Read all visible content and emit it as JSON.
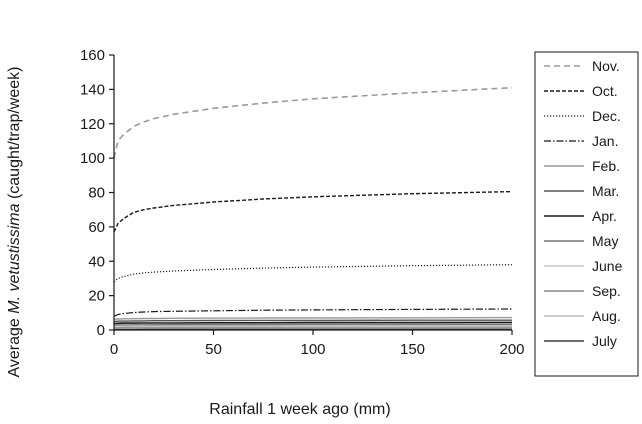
{
  "chart_data": {
    "type": "line",
    "xlabel": "Rainfall 1 week ago (mm)",
    "ylabel_prefix": "Average ",
    "ylabel_species": "M. vetustissima",
    "ylabel_suffix": " (caught/trap/week)",
    "xlim": [
      0,
      200
    ],
    "ylim": [
      0,
      160
    ],
    "x_ticks": [
      0,
      50,
      100,
      150,
      200
    ],
    "y_ticks": [
      0,
      20,
      40,
      60,
      80,
      100,
      120,
      140,
      160
    ],
    "grid": false,
    "legend_position": "right",
    "x": [
      0,
      2,
      5,
      10,
      15,
      20,
      30,
      50,
      75,
      100,
      150,
      200
    ],
    "series": [
      {
        "name": "Nov.",
        "color": "#9a9a9a",
        "dash": "6,4",
        "width": 1.6,
        "values": [
          100,
          110,
          114,
          118.5,
          121,
          123,
          125.5,
          129,
          132,
          134.5,
          138,
          141
        ]
      },
      {
        "name": "Oct.",
        "color": "#1a1a1a",
        "dash": "4,2",
        "width": 1.4,
        "values": [
          57,
          62,
          65,
          68.5,
          70,
          71,
          72.5,
          74.5,
          76.2,
          77.5,
          79.3,
          80.5
        ]
      },
      {
        "name": "Dec.",
        "color": "#1a1a1a",
        "dash": "1.2,1.8",
        "width": 1.2,
        "values": [
          28,
          30,
          31.2,
          32.5,
          33.2,
          33.7,
          34.3,
          35.2,
          36,
          36.6,
          37.4,
          38
        ]
      },
      {
        "name": "Jan.",
        "color": "#1a1a1a",
        "dash": "7,2,1.5,2",
        "width": 1.2,
        "values": [
          8,
          9,
          9.6,
          10.2,
          10.5,
          10.7,
          10.9,
          11.2,
          11.5,
          11.7,
          12,
          12.2
        ]
      },
      {
        "name": "Feb.",
        "color": "#9a9a9a",
        "dash": "",
        "width": 1.4,
        "values": [
          6.2,
          6.4,
          6.5,
          6.6,
          6.7,
          6.7,
          6.8,
          6.9,
          7,
          7,
          7.1,
          7.2
        ]
      },
      {
        "name": "Mar.",
        "color": "#555555",
        "dash": "",
        "width": 1.4,
        "values": [
          5,
          5.1,
          5.2,
          5.3,
          5.3,
          5.4,
          5.4,
          5.5,
          5.6,
          5.6,
          5.7,
          5.7
        ]
      },
      {
        "name": "Apr.",
        "color": "#1a1a1a",
        "dash": "",
        "width": 1.6,
        "values": [
          3.8,
          3.9,
          4,
          4,
          4.1,
          4.1,
          4.1,
          4.2,
          4.2,
          4.3,
          4.3,
          4.4
        ]
      },
      {
        "name": "May",
        "color": "#777777",
        "dash": "",
        "width": 1.4,
        "values": [
          2.8,
          2.9,
          2.9,
          3,
          3,
          3,
          3.1,
          3.1,
          3.1,
          3.2,
          3.2,
          3.2
        ]
      },
      {
        "name": "June",
        "color": "#c8c8c8",
        "dash": "",
        "width": 1.4,
        "values": [
          2,
          2,
          2.1,
          2.1,
          2.1,
          2.2,
          2.2,
          2.2,
          2.2,
          2.3,
          2.3,
          2.3
        ]
      },
      {
        "name": "Sep.",
        "color": "#8a8a8a",
        "dash": "",
        "width": 1.4,
        "values": [
          1.3,
          1.3,
          1.4,
          1.4,
          1.4,
          1.4,
          1.5,
          1.5,
          1.5,
          1.5,
          1.5,
          1.6
        ]
      },
      {
        "name": "Aug.",
        "color": "#bdbdbd",
        "dash": "",
        "width": 1.4,
        "values": [
          0.8,
          0.8,
          0.8,
          0.9,
          0.9,
          0.9,
          0.9,
          0.9,
          0.9,
          1,
          1,
          1
        ]
      },
      {
        "name": "July",
        "color": "#3c3c3c",
        "dash": "",
        "width": 1.4,
        "values": [
          0.3,
          0.3,
          0.3,
          0.3,
          0.4,
          0.4,
          0.4,
          0.4,
          0.4,
          0.4,
          0.4,
          0.4
        ]
      }
    ]
  }
}
